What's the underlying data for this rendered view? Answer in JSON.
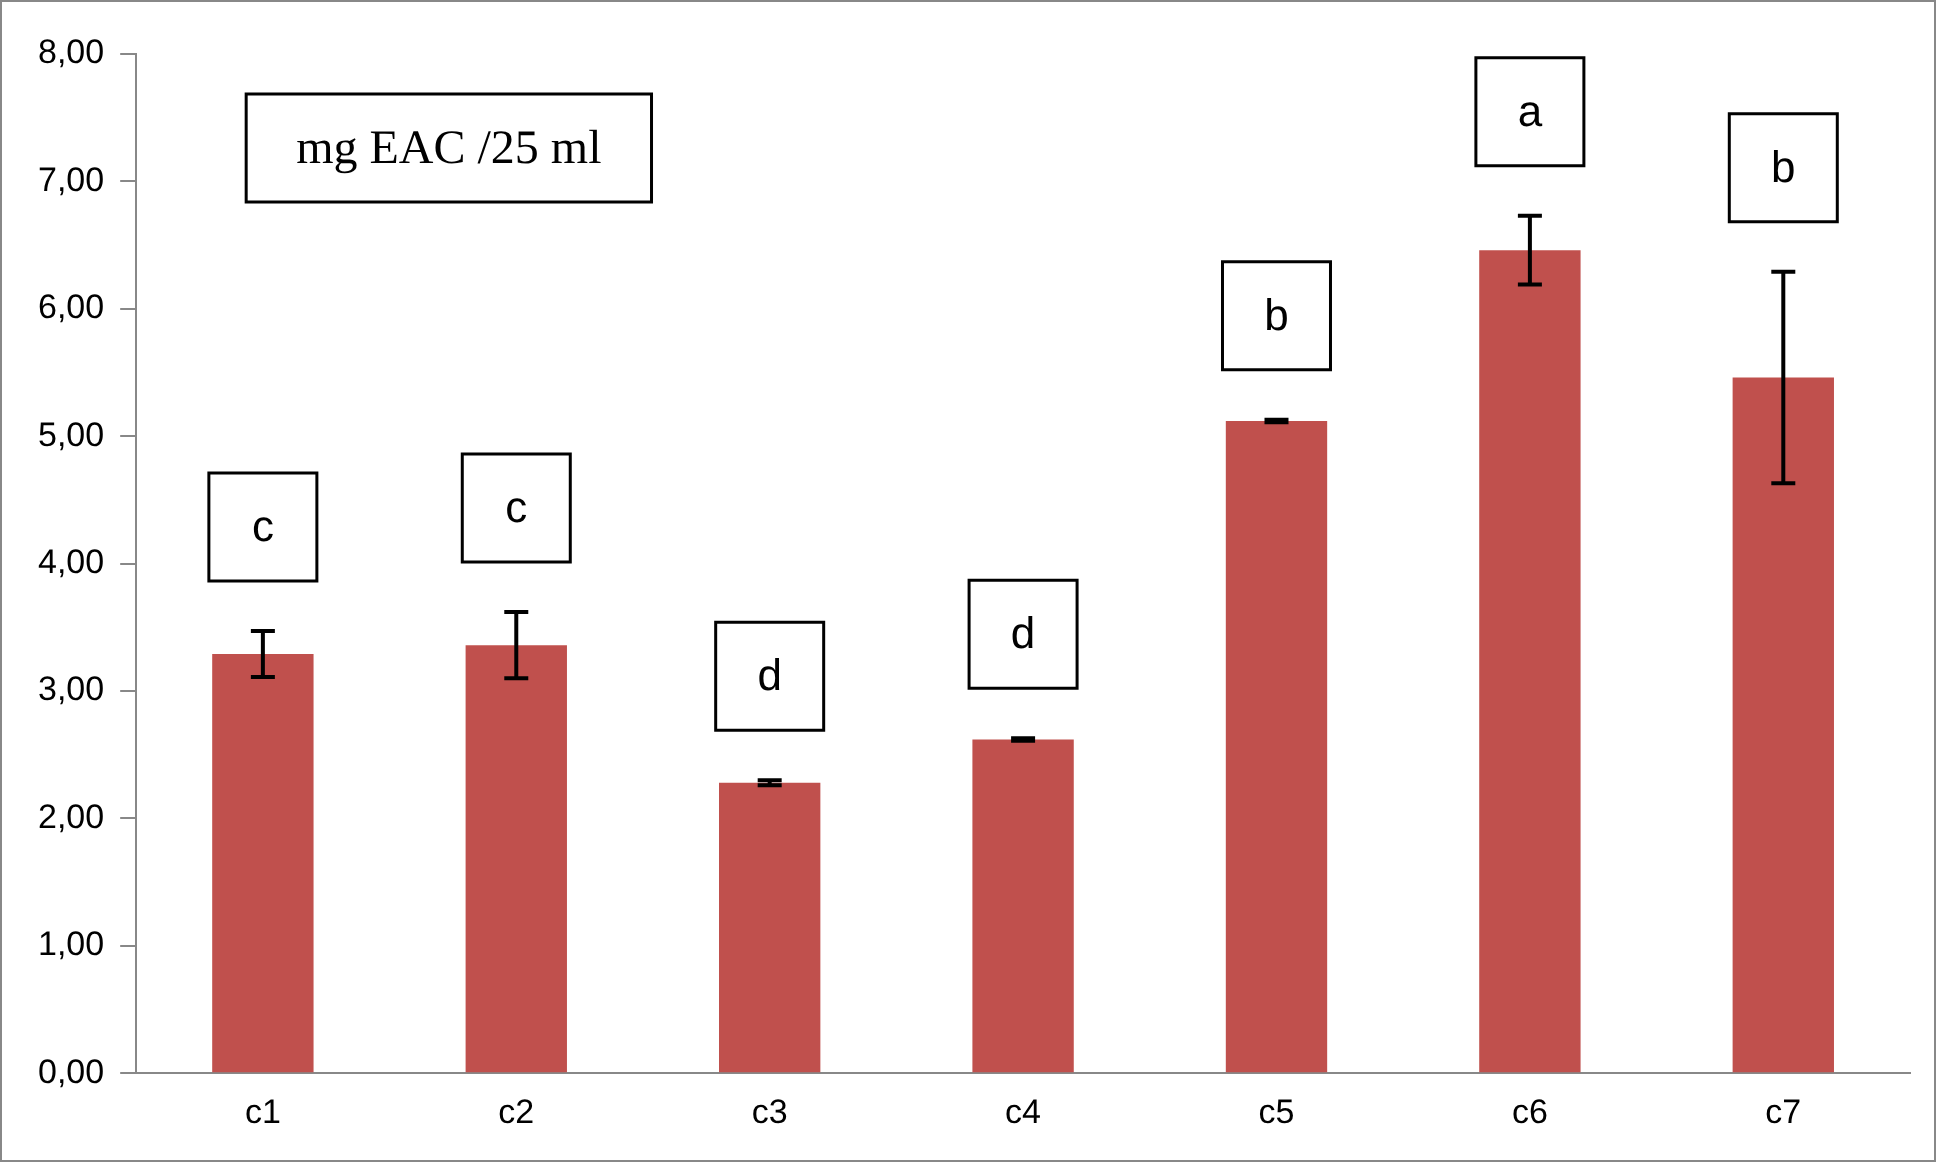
{
  "chart_data": {
    "type": "bar",
    "categories": [
      "c1",
      "c2",
      "c3",
      "c4",
      "c5",
      "c6",
      "c7"
    ],
    "values": [
      3.29,
      3.36,
      2.28,
      2.62,
      5.12,
      6.46,
      5.46
    ],
    "errors": [
      0.18,
      0.26,
      0.02,
      0.01,
      0.01,
      0.27,
      0.83
    ],
    "color": "#c0504d",
    "ylim": [
      0,
      8
    ],
    "yticks": [
      {
        "value": 0,
        "label": "0,00"
      },
      {
        "value": 1,
        "label": "1,00"
      },
      {
        "value": 2,
        "label": "2,00"
      },
      {
        "value": 3,
        "label": "3,00"
      },
      {
        "value": 4,
        "label": "4,00"
      },
      {
        "value": 5,
        "label": "5,00"
      },
      {
        "value": 6,
        "label": "6,00"
      },
      {
        "value": 7,
        "label": "7,00"
      },
      {
        "value": 8,
        "label": "8,00"
      }
    ],
    "grid": false,
    "legend": false,
    "annotations": [
      "mg EAC /25 ml",
      "c",
      "c",
      "d",
      "d",
      "b",
      "a",
      "b"
    ]
  }
}
